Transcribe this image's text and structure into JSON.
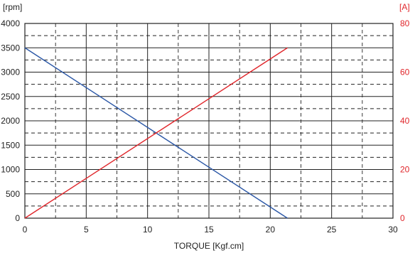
{
  "chart_data": {
    "type": "line",
    "title": "",
    "xlabel": "TORQUE [Kgf.cm]",
    "ylabel_left": "[rpm]",
    "ylabel_right": "[A]",
    "xlim": [
      0,
      30
    ],
    "ylim_left": [
      0,
      4000
    ],
    "ylim_right": [
      0,
      80
    ],
    "x_ticks": [
      "0",
      "5",
      "10",
      "15",
      "20",
      "25",
      "30"
    ],
    "y_left_ticks": [
      "0",
      "500",
      "1000",
      "1500",
      "2000",
      "2500",
      "3000",
      "3500",
      "4000"
    ],
    "y_right_ticks": [
      "0",
      "20",
      "40",
      "60",
      "80"
    ],
    "grid": "major solid, minor dashed",
    "series": [
      {
        "axis": "left",
        "color": "#2b57a6",
        "x": [
          0,
          21.4
        ],
        "values": [
          3500,
          0
        ]
      },
      {
        "axis": "right",
        "color": "#e0262b",
        "x": [
          0,
          21.4
        ],
        "values": [
          0,
          70
        ]
      }
    ],
    "colors": {
      "left_axis_text": "#222222",
      "right_axis_text": "#e0262b",
      "grid": "#222222"
    }
  }
}
